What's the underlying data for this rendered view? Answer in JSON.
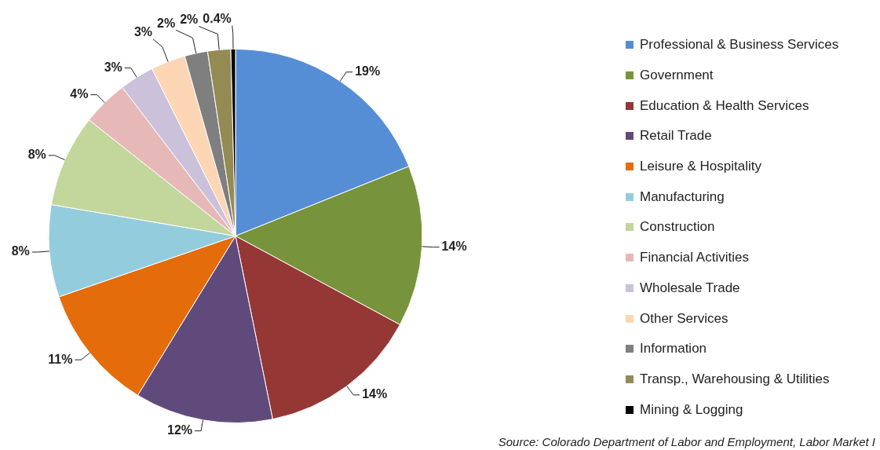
{
  "chart_data": {
    "type": "pie",
    "categories": [
      "Professional & Business Services",
      "Government",
      "Education & Health Services",
      "Retail Trade",
      "Leisure & Hospitality",
      "Manufacturing",
      "Construction",
      "Financial Activities",
      "Wholesale Trade",
      "Other Services",
      "Information",
      "Transp., Warehousing & Utilities",
      "Mining & Logging"
    ],
    "values": [
      19,
      14,
      14,
      12,
      11,
      8,
      8,
      4,
      3,
      3,
      2,
      2,
      0.4
    ],
    "value_labels": [
      "19%",
      "14%",
      "14%",
      "12%",
      "11%",
      "8%",
      "8%",
      "4%",
      "3%",
      "3%",
      "2%",
      "2%",
      "0.4%"
    ],
    "colors": [
      "#558ed5",
      "#77933c",
      "#953735",
      "#604a7b",
      "#e46c0a",
      "#93cddd",
      "#c3d69b",
      "#e6b9b8",
      "#ccc1da",
      "#fcd5b5",
      "#7f7f7f",
      "#948a54",
      "#000000"
    ],
    "legend": "right",
    "annotations": [
      "Source: Colorado Department of Labor and Employment, Labor Market I"
    ]
  }
}
